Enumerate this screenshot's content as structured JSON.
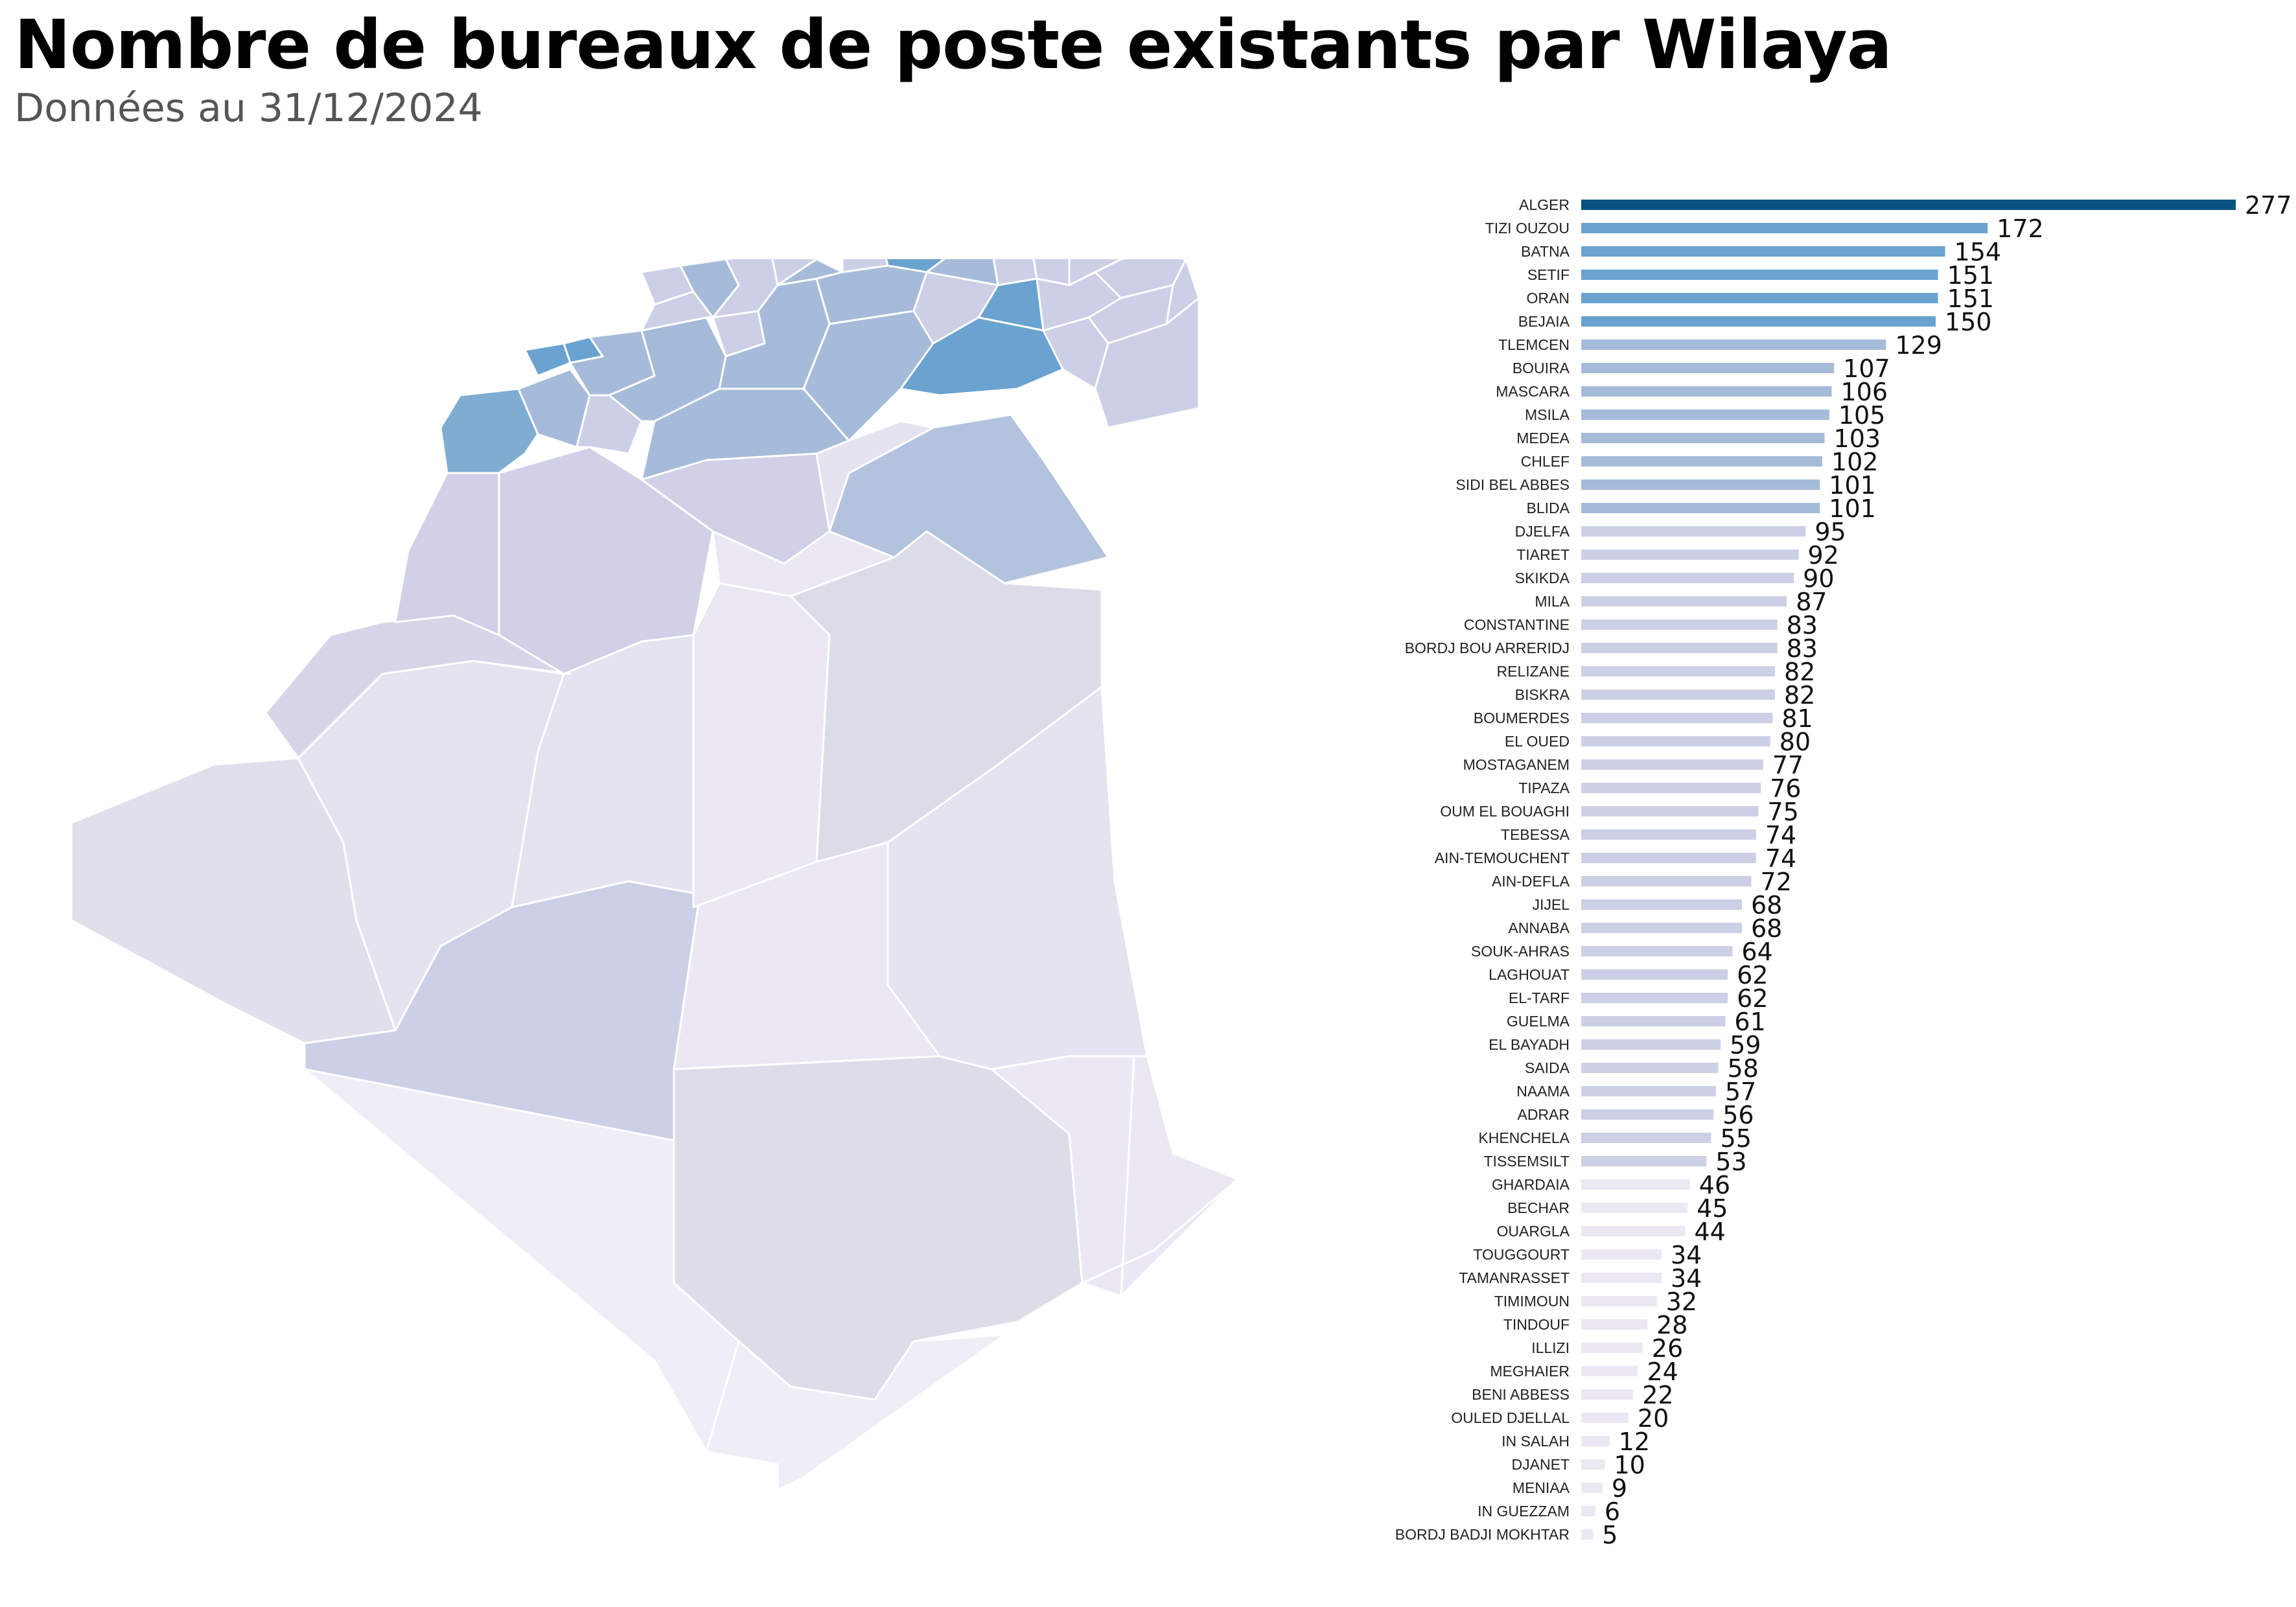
{
  "header": {
    "title": "Nombre de bureaux de poste existants par Wilaya",
    "subtitle": "Données au 31/12/2024"
  },
  "colors": {
    "max": "#08527e",
    "high": "#6aa3cf",
    "upper_mid": "#a6bbd9",
    "mid": "#cdcfe6",
    "low": "#ebe8f3"
  },
  "chart_data": {
    "type": "bar",
    "orientation": "horizontal",
    "categories": [
      "ALGER",
      "TIZI OUZOU",
      "BATNA",
      "SETIF",
      "ORAN",
      "BEJAIA",
      "TLEMCEN",
      "BOUIRA",
      "MASCARA",
      "MSILA",
      "MEDEA",
      "CHLEF",
      "SIDI BEL ABBES",
      "BLIDA",
      "DJELFA",
      "TIARET",
      "SKIKDA",
      "MILA",
      "CONSTANTINE",
      "BORDJ BOU ARRERIDJ",
      "RELIZANE",
      "BISKRA",
      "BOUMERDES",
      "EL OUED",
      "MOSTAGANEM",
      "TIPAZA",
      "OUM EL BOUAGHI",
      "TEBESSA",
      "AIN-TEMOUCHENT",
      "AIN-DEFLA",
      "JIJEL",
      "ANNABA",
      "SOUK-AHRAS",
      "LAGHOUAT",
      "EL-TARF",
      "GUELMA",
      "EL BAYADH",
      "SAIDA",
      "NAAMA",
      "ADRAR",
      "KHENCHELA",
      "TISSEMSILT",
      "GHARDAIA",
      "BECHAR",
      "OUARGLA",
      "TOUGGOURT",
      "TAMANRASSET",
      "TIMIMOUN",
      "TINDOUF",
      "ILLIZI",
      "MEGHAIER",
      "BENI ABBESS",
      "OULED DJELLAL",
      "IN SALAH",
      "DJANET",
      "MENIAA",
      "IN GUEZZAM",
      "BORDJ BADJI MOKHTAR"
    ],
    "values": [
      277,
      172,
      154,
      151,
      151,
      150,
      129,
      107,
      106,
      105,
      103,
      102,
      101,
      101,
      95,
      92,
      90,
      87,
      83,
      83,
      82,
      82,
      81,
      80,
      77,
      76,
      75,
      74,
      74,
      72,
      68,
      68,
      64,
      62,
      62,
      61,
      59,
      58,
      57,
      56,
      55,
      53,
      46,
      45,
      44,
      34,
      34,
      32,
      28,
      26,
      24,
      22,
      20,
      12,
      10,
      9,
      6,
      5
    ],
    "xlim": [
      0,
      277
    ],
    "grid": false,
    "legend": "none"
  }
}
